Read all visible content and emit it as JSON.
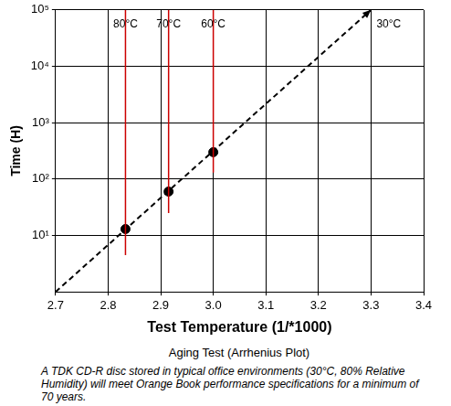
{
  "chart_data": {
    "type": "scatter",
    "x_label": "Test Temperature (1/*1000)",
    "y_label": "Time (H)",
    "xlim": [
      2.7,
      3.4
    ],
    "xticks": [
      2.7,
      2.8,
      2.9,
      {
        "value": 3,
        "label": "3.0"
      },
      3.1,
      3.2,
      3.3,
      3.4
    ],
    "ylim": [
      1,
      100000
    ],
    "yticks": [
      {
        "value": 10,
        "label": "10¹"
      },
      {
        "value": 100,
        "label": "10²"
      },
      {
        "value": 1000,
        "label": "10³"
      },
      {
        "value": 10000,
        "label": "10⁴"
      },
      {
        "value": 100000,
        "label": "10⁵"
      }
    ],
    "log": "y",
    "grid": true,
    "series": [
      {
        "type": "scatter",
        "color": "#000000",
        "marker": "circle",
        "x": [
          2.833,
          2.915,
          3.0
        ],
        "values": [
          13,
          60,
          300
        ]
      },
      {
        "type": "line",
        "color": "#000000",
        "line_style": "dashed",
        "marker": "arrow",
        "x": [
          2.7,
          3.3
        ],
        "values": [
          1,
          100000
        ]
      }
    ],
    "reference_lines": [
      {
        "x": 2.833,
        "from": 4.5,
        "to": 100000,
        "label": "80°C",
        "color": "#cc0000"
      },
      {
        "x": 2.915,
        "from": 25,
        "to": 100000,
        "label": "70°C",
        "color": "#cc0000"
      },
      {
        "x": 3.0,
        "from": 130,
        "to": 100000,
        "label": "60°C",
        "color": "#cc0000"
      }
    ],
    "annotations": [
      {
        "text": "30°C",
        "x": 3.3,
        "y": 100000
      }
    ],
    "caption": "Aging Test (Arrhenius Plot)",
    "note": "A TDK CD-R disc stored in typical office environments (30°C, 80% Relative Humidity) will meet Orange Book performance specifications for a minimum of 70 years."
  }
}
